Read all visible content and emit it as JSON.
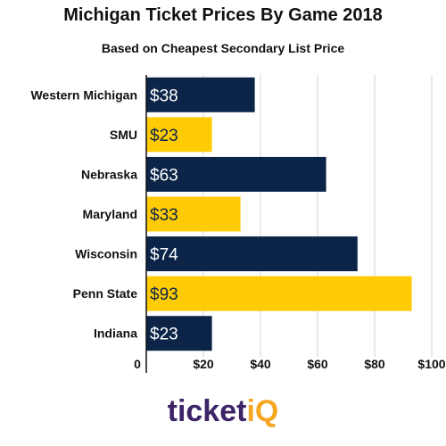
{
  "chart_data": {
    "type": "bar",
    "orientation": "horizontal",
    "title": "Michigan Ticket Prices By Game 2018",
    "subtitle": "Based on Cheapest Secondary List Price",
    "categories": [
      "Western Michigan",
      "SMU",
      "Nebraska",
      "Maryland",
      "Wisconsin",
      "Penn State",
      "Indiana"
    ],
    "values": [
      38,
      23,
      63,
      33,
      74,
      93,
      23
    ],
    "data_labels": [
      "$38",
      "$23",
      "$63",
      "$33",
      "$74",
      "$93",
      "$23"
    ],
    "bar_colors": [
      "#0b2448",
      "#ffcb05",
      "#0b2448",
      "#ffcb05",
      "#0b2448",
      "#ffcb05",
      "#0b2448"
    ],
    "xlim": [
      0,
      100
    ],
    "x_ticks": [
      0,
      20,
      40,
      60,
      80,
      100
    ],
    "x_tick_labels": [
      "0",
      "$20",
      "$40",
      "$60",
      "$80",
      "$100"
    ],
    "grid": "vertical",
    "legend": "none"
  },
  "brand": {
    "logo_text_main": "ticket",
    "logo_text_accent": "iQ",
    "colors": {
      "main": "#3d2466",
      "accent": "#f5a623"
    }
  }
}
